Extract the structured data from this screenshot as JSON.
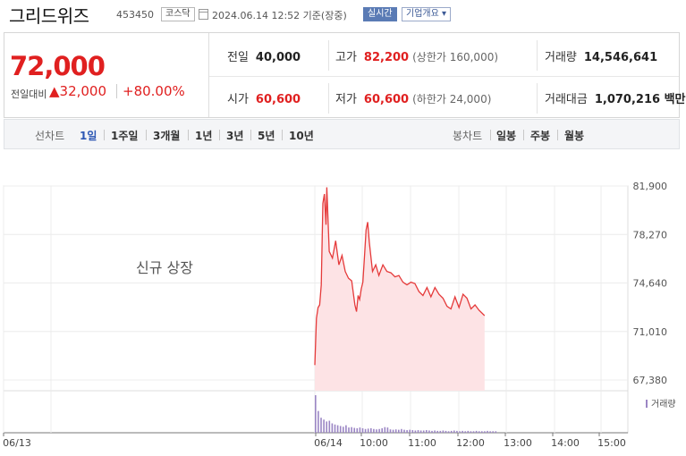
{
  "header": {
    "name": "그리드위즈",
    "code": "453450",
    "market_badge": "코스닥",
    "as_of": "2024.06.14 12:52 기준(장중)",
    "live_badge": "실시간",
    "corp_badge": "기업개요 ▾"
  },
  "summary": {
    "price": "72,000",
    "change_label": "전일대비",
    "change": "▲32,000",
    "change_pct": "+80.00%",
    "prev_close": {
      "label": "전일",
      "value": "40,000"
    },
    "high": {
      "label": "고가",
      "value": "82,200",
      "sub": "(상한가 160,000)"
    },
    "volume": {
      "label": "거래량",
      "value": "14,546,641"
    },
    "open": {
      "label": "시가",
      "value": "60,600"
    },
    "low": {
      "label": "저가",
      "value": "60,600",
      "sub": "(하한가 24,000)"
    },
    "amount": {
      "label": "거래대금",
      "value": "1,070,216 백만"
    }
  },
  "periods": {
    "line_label": "선차트",
    "line_options": [
      "1일",
      "1주일",
      "3개월",
      "1년",
      "3년",
      "5년",
      "10년"
    ],
    "selected": "1일",
    "candle_label": "봉차트",
    "candle_options": [
      "일봉",
      "주봉",
      "월봉"
    ]
  },
  "colors": {
    "up": "#e02020",
    "line": "#e53a3a",
    "area": "#fde3e5",
    "volume": "#9b86c4",
    "selected": "#2d58b4"
  },
  "chart_data": {
    "type": "area",
    "annotation": "신규 상장",
    "y_ticks": [
      "81,900",
      "78,270",
      "74,640",
      "71,010",
      "67,380"
    ],
    "ylim": [
      67380,
      81900
    ],
    "x_ticks": [
      "06/13",
      "06/14",
      "10:00",
      "11:00",
      "12:00",
      "13:00",
      "14:00",
      "15:00"
    ],
    "volume_label": "거래량",
    "x_unit": "minutes after 09:00 on 06/14",
    "series": [
      {
        "x": [
          0,
          2,
          4,
          6,
          8,
          10,
          12,
          14,
          15,
          18,
          22,
          26,
          30,
          34,
          38,
          42,
          46,
          50,
          52,
          54,
          56,
          58,
          60,
          62,
          64,
          66,
          68,
          72,
          76,
          80,
          85,
          90,
          95,
          100,
          105,
          110,
          115,
          120,
          125,
          130,
          135,
          140,
          145,
          150,
          155,
          160,
          165,
          170,
          175,
          180,
          185,
          190,
          195,
          200,
          205,
          212
        ],
        "values": [
          68500,
          72000,
          72800,
          73000,
          74500,
          80600,
          81300,
          79000,
          81800,
          77000,
          76500,
          77800,
          76000,
          76700,
          75500,
          75000,
          74800,
          73000,
          72500,
          73700,
          73400,
          74200,
          74700,
          76600,
          78600,
          79200,
          77700,
          75500,
          76000,
          75200,
          76000,
          75500,
          75400,
          75100,
          75200,
          74700,
          74500,
          74700,
          74600,
          74000,
          73700,
          74300,
          73600,
          74300,
          73800,
          73500,
          72900,
          72700,
          73600,
          72800,
          73800,
          73500,
          72700,
          73000,
          72600,
          72200
        ]
      }
    ],
    "volume": [
      100,
      58,
      40,
      35,
      30,
      32,
      25,
      22,
      20,
      18,
      16,
      20,
      14,
      15,
      13,
      12,
      14,
      12,
      10,
      11,
      12,
      10,
      9,
      10,
      12,
      15,
      14,
      9,
      8,
      9,
      8,
      10,
      8,
      7,
      8,
      7,
      6,
      7,
      6,
      6,
      7,
      6,
      5,
      6,
      5,
      5,
      6,
      5,
      4,
      5,
      6,
      5,
      4,
      5,
      4,
      5,
      4,
      4,
      5,
      4,
      4,
      4,
      5,
      4,
      4,
      4
    ]
  }
}
